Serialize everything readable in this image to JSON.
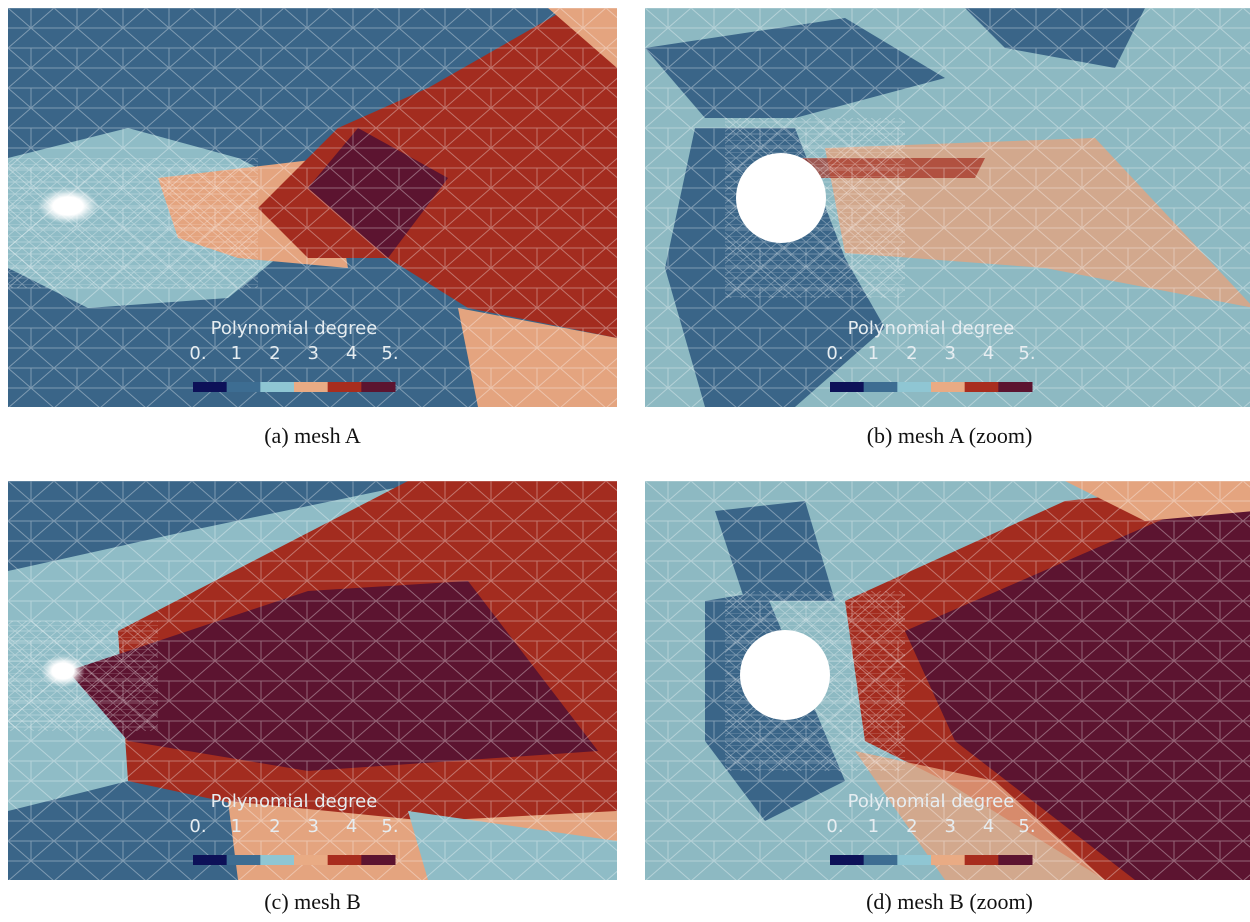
{
  "panels": [
    {
      "caption": "(a) mesh A",
      "legend": {
        "title": "Polynomial degree",
        "labels": [
          "0.",
          "1",
          "2",
          "3",
          "4",
          "5."
        ]
      }
    },
    {
      "caption": "(b) mesh A (zoom)",
      "legend": {
        "title": "Polynomial degree",
        "labels": [
          "0.",
          "1",
          "2",
          "3",
          "4",
          "5."
        ]
      }
    },
    {
      "caption": "(c) mesh B",
      "legend": {
        "title": "Polynomial degree",
        "labels": [
          "0.",
          "1",
          "2",
          "3",
          "4",
          "5."
        ]
      }
    },
    {
      "caption": "(d) mesh B (zoom)",
      "legend": {
        "title": "Polynomial degree",
        "labels": [
          "0.",
          "1",
          "2",
          "3",
          "4",
          "5."
        ]
      }
    }
  ],
  "colorbar": [
    "#0d1158",
    "#3d6d92",
    "#8fc6d3",
    "#e9ab84",
    "#a82d1e",
    "#5c1430"
  ]
}
